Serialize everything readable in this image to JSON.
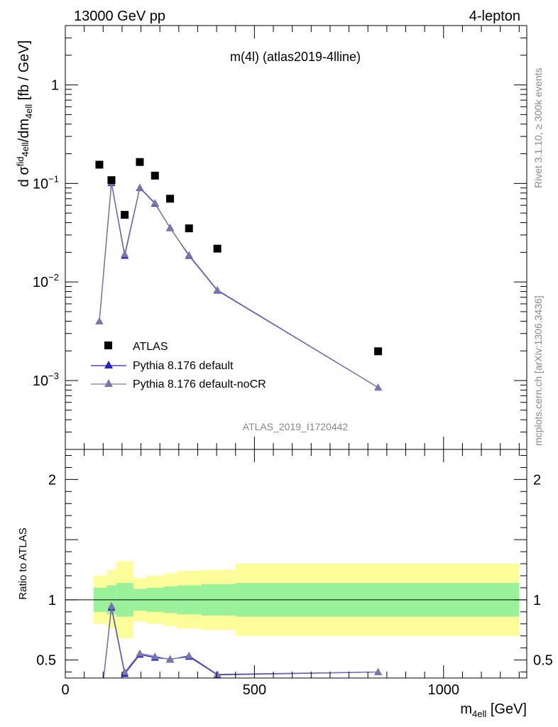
{
  "header": {
    "left": "13000 GeV pp",
    "right": "4-lepton"
  },
  "side": {
    "rivet": "Rivet 3.1.10, ≥ 300k events",
    "mcplots": "mcplots.cern.ch [arXiv:1306.3436]"
  },
  "chart_data": {
    "type": "scatter",
    "title": "m(4l) (atlas2019-4lline)",
    "watermark": "ATLAS_2019_I1720442",
    "xlabel": "m4ell [GeV]",
    "ylabel": "d σfid4ell/dm4ell [fb / GeV]",
    "ratio_ylabel": "Ratio to ATLAS",
    "xlim": [
      0,
      1220
    ],
    "ylim": [
      0.0002,
      4.0
    ],
    "yscale": "log",
    "ratio_ylim": [
      0.35,
      2.25
    ],
    "x_ticks": [
      0,
      500,
      1000
    ],
    "x_tick_labels": [
      "0",
      "500",
      "1000"
    ],
    "y_ticks": [
      1,
      0.1,
      0.01,
      0.001
    ],
    "y_tick_labels": [
      "1",
      "10−1",
      "10−2",
      "10−3"
    ],
    "ratio_ticks": [
      2,
      1,
      0.5
    ],
    "ratio_tick_labels": [
      "2",
      "1",
      "0.5"
    ],
    "legend_position": "bottom-left",
    "data": {
      "name": "ATLAS",
      "color": "#000000",
      "x": [
        90,
        122,
        157,
        197,
        237,
        277,
        327,
        402,
        827
      ],
      "y": [
        0.155,
        0.108,
        0.048,
        0.165,
        0.12,
        0.07,
        0.035,
        0.0218,
        0.00198
      ]
    },
    "series": [
      {
        "name": "Pythia 8.176 default",
        "color": "#2222cc",
        "x": [
          90,
          122,
          157,
          197,
          237,
          277,
          327,
          402,
          827
        ],
        "y": [
          0.004,
          0.101,
          0.0185,
          0.09,
          0.0625,
          0.0355,
          0.0185,
          0.0082,
          0.00085
        ]
      },
      {
        "name": "Pythia 8.176 default-noCR",
        "color": "#7777aa",
        "x": [
          90,
          122,
          157,
          197,
          237,
          277,
          327,
          402,
          827
        ],
        "y": [
          0.004,
          0.103,
          0.0192,
          0.091,
          0.0635,
          0.0352,
          0.0188,
          0.0083,
          0.00085
        ]
      }
    ],
    "ratio_series": [
      {
        "name": "Pythia 8.176 default",
        "color": "#2222cc",
        "x": [
          90,
          122,
          157,
          197,
          237,
          277,
          327,
          402,
          827
        ],
        "y": [
          0.026,
          0.935,
          0.385,
          0.545,
          0.52,
          0.507,
          0.528,
          0.376,
          0.4
        ]
      },
      {
        "name": "Pythia 8.176 default-noCR",
        "color": "#7777aa",
        "x": [
          90,
          122,
          157,
          197,
          237,
          277,
          327,
          402,
          827
        ],
        "y": [
          0.026,
          0.95,
          0.4,
          0.555,
          0.53,
          0.503,
          0.537,
          0.381,
          0.4
        ]
      }
    ],
    "bands": {
      "inner_color": "#99f299",
      "outer_color": "#fdfd99",
      "bins": [
        {
          "lo": 75,
          "hi": 110,
          "inner": [
            0.9,
            1.1
          ],
          "outer": [
            0.8,
            1.2
          ]
        },
        {
          "lo": 110,
          "hi": 135,
          "inner": [
            0.88,
            1.12
          ],
          "outer": [
            0.76,
            1.25
          ]
        },
        {
          "lo": 135,
          "hi": 180,
          "inner": [
            0.86,
            1.14
          ],
          "outer": [
            0.68,
            1.32
          ]
        },
        {
          "lo": 180,
          "hi": 215,
          "inner": [
            0.91,
            1.09
          ],
          "outer": [
            0.82,
            1.18
          ]
        },
        {
          "lo": 215,
          "hi": 260,
          "inner": [
            0.9,
            1.1
          ],
          "outer": [
            0.8,
            1.2
          ]
        },
        {
          "lo": 260,
          "hi": 295,
          "inner": [
            0.89,
            1.11
          ],
          "outer": [
            0.78,
            1.22
          ]
        },
        {
          "lo": 295,
          "hi": 360,
          "inner": [
            0.88,
            1.12
          ],
          "outer": [
            0.76,
            1.24
          ]
        },
        {
          "lo": 360,
          "hi": 450,
          "inner": [
            0.87,
            1.13
          ],
          "outer": [
            0.75,
            1.25
          ]
        },
        {
          "lo": 450,
          "hi": 1200,
          "inner": [
            0.86,
            1.14
          ],
          "outer": [
            0.7,
            1.3
          ]
        }
      ]
    }
  }
}
